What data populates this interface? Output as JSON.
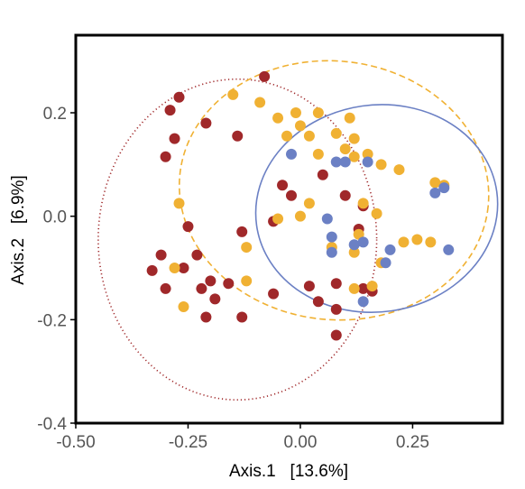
{
  "chart_data": {
    "type": "scatter",
    "title": "",
    "xlabel": "Axis.1   [13.6%]",
    "ylabel": "Axis.2   [6.9%]",
    "xlim": [
      -0.5,
      0.45
    ],
    "ylim": [
      -0.4,
      0.35
    ],
    "xticks": [
      -0.5,
      -0.25,
      0.0,
      0.25
    ],
    "xtick_labels": [
      "-0.50",
      "-0.25",
      "0.00",
      "0.25"
    ],
    "yticks": [
      0.2,
      0.0,
      -0.2,
      -0.4
    ],
    "ytick_labels": [
      "0.2",
      "0.0",
      "-0.2",
      "-0.4"
    ],
    "grid": false,
    "legend": "none",
    "series": [
      {
        "color": "#a0282a",
        "ellipse": {
          "cx": -0.14,
          "cy": -0.045,
          "rx": 0.31,
          "ry": 0.31,
          "style": "dotted"
        },
        "points": [
          [
            -0.08,
            0.27
          ],
          [
            -0.27,
            0.23
          ],
          [
            -0.29,
            0.205
          ],
          [
            -0.21,
            0.18
          ],
          [
            -0.28,
            0.15
          ],
          [
            -0.3,
            0.115
          ],
          [
            -0.14,
            0.155
          ],
          [
            -0.06,
            -0.01
          ],
          [
            -0.04,
            0.06
          ],
          [
            -0.02,
            0.04
          ],
          [
            0.05,
            0.08
          ],
          [
            0.1,
            0.04
          ],
          [
            0.14,
            0.02
          ],
          [
            0.13,
            -0.025
          ],
          [
            -0.25,
            -0.02
          ],
          [
            -0.13,
            -0.03
          ],
          [
            -0.31,
            -0.075
          ],
          [
            -0.23,
            -0.075
          ],
          [
            -0.33,
            -0.105
          ],
          [
            -0.26,
            -0.1
          ],
          [
            -0.3,
            -0.14
          ],
          [
            -0.2,
            -0.125
          ],
          [
            -0.22,
            -0.14
          ],
          [
            -0.16,
            -0.13
          ],
          [
            -0.19,
            -0.16
          ],
          [
            -0.06,
            -0.15
          ],
          [
            0.02,
            -0.135
          ],
          [
            0.08,
            -0.13
          ],
          [
            -0.13,
            -0.195
          ],
          [
            -0.21,
            -0.195
          ],
          [
            0.04,
            -0.165
          ],
          [
            0.08,
            -0.18
          ],
          [
            0.16,
            -0.145
          ],
          [
            0.14,
            -0.14
          ],
          [
            0.08,
            -0.23
          ]
        ]
      },
      {
        "color": "#f0b133",
        "ellipse": {
          "cx": 0.075,
          "cy": 0.05,
          "rx": 0.345,
          "ry": 0.25,
          "rotation": 6,
          "style": "dashed"
        },
        "points": [
          [
            -0.15,
            0.235
          ],
          [
            -0.09,
            0.22
          ],
          [
            -0.01,
            0.2
          ],
          [
            -0.05,
            0.19
          ],
          [
            0.04,
            0.2
          ],
          [
            -0.03,
            0.155
          ],
          [
            0.0,
            0.175
          ],
          [
            0.02,
            0.155
          ],
          [
            0.08,
            0.16
          ],
          [
            0.1,
            0.13
          ],
          [
            0.12,
            0.15
          ],
          [
            0.12,
            0.115
          ],
          [
            0.04,
            0.12
          ],
          [
            0.11,
            0.19
          ],
          [
            0.15,
            0.12
          ],
          [
            0.18,
            0.1
          ],
          [
            0.22,
            0.09
          ],
          [
            0.3,
            0.065
          ],
          [
            0.32,
            0.06
          ],
          [
            -0.27,
            0.025
          ],
          [
            -0.05,
            -0.005
          ],
          [
            0.0,
            0.0
          ],
          [
            0.02,
            0.025
          ],
          [
            0.14,
            0.025
          ],
          [
            0.17,
            0.005
          ],
          [
            0.07,
            -0.06
          ],
          [
            0.12,
            -0.07
          ],
          [
            0.18,
            -0.09
          ],
          [
            0.23,
            -0.05
          ],
          [
            0.26,
            -0.045
          ],
          [
            0.29,
            -0.05
          ],
          [
            -0.12,
            -0.06
          ],
          [
            -0.28,
            -0.1
          ],
          [
            -0.12,
            -0.125
          ],
          [
            0.12,
            -0.14
          ],
          [
            0.16,
            -0.135
          ],
          [
            -0.26,
            -0.175
          ],
          [
            0.13,
            -0.035
          ]
        ]
      },
      {
        "color": "#6b80c4",
        "ellipse": {
          "cx": 0.17,
          "cy": 0.015,
          "rx": 0.27,
          "ry": 0.2,
          "rotation": -8,
          "style": "solid"
        },
        "points": [
          [
            -0.02,
            0.12
          ],
          [
            0.08,
            0.105
          ],
          [
            0.1,
            0.105
          ],
          [
            0.15,
            0.105
          ],
          [
            0.32,
            0.055
          ],
          [
            0.3,
            0.045
          ],
          [
            0.06,
            -0.005
          ],
          [
            0.07,
            -0.04
          ],
          [
            0.12,
            -0.055
          ],
          [
            0.14,
            -0.05
          ],
          [
            0.2,
            -0.065
          ],
          [
            0.33,
            -0.065
          ],
          [
            0.07,
            -0.07
          ],
          [
            0.14,
            -0.165
          ],
          [
            0.19,
            -0.09
          ]
        ]
      }
    ]
  }
}
